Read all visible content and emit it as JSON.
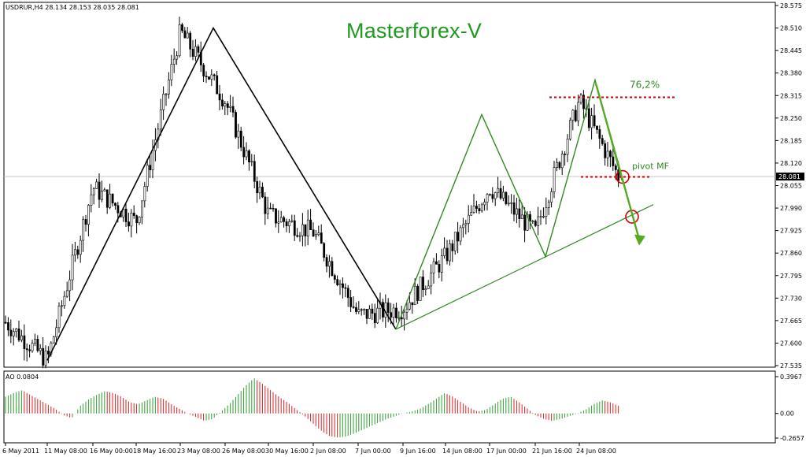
{
  "header": {
    "symbol_line": "USDRUR,H4  28.134 28.153 28.035 28.081",
    "watermark": "Masterforex-V"
  },
  "annotations": {
    "fib_label": "76,2%",
    "pivot_label": "pivot MF"
  },
  "colors": {
    "candle": "#000000",
    "black_line": "#000000",
    "green_line": "#2e8b1e",
    "dotted_red": "#cc0000",
    "arrow_green": "#55aa22",
    "ao_up": "#2e9e2e",
    "ao_down": "#dd2222",
    "watermark": "#1f9a1f"
  },
  "price_axis": {
    "ticks": [
      "28.575",
      "28.510",
      "28.445",
      "28.380",
      "28.315",
      "28.250",
      "28.185",
      "28.120",
      "28.055",
      "27.990",
      "27.925",
      "27.860",
      "27.795",
      "27.730",
      "27.665",
      "27.600",
      "27.535"
    ],
    "current_price": "28.081",
    "min": 27.535,
    "max": 28.575
  },
  "time_axis": {
    "labels": [
      "6 May 2011",
      "11 May 08:00",
      "16 May 00:00",
      "18 May 16:00",
      "23 May 08:00",
      "26 May 08:00",
      "30 May 16:00",
      "2 Jun 08:00",
      "7 Jun 00:00",
      "9 Jun 16:00",
      "14 Jun 08:00",
      "17 Jun 00:00",
      "21 Jun 16:00",
      "24 Jun 08:00"
    ]
  },
  "indicator": {
    "label": "AO 0.0804",
    "ticks": [
      "0.3967",
      "0.00",
      "-0.2657"
    ],
    "max": 0.3967,
    "min": -0.2657
  },
  "chart_data": {
    "type": "candlestick",
    "symbol": "USDRUR",
    "timeframe": "H4",
    "ohlc": {
      "open": 28.134,
      "high": 28.153,
      "low": 28.035,
      "close": 28.081
    },
    "ylim": [
      27.535,
      28.575
    ],
    "price_path": [
      {
        "t": "6 May 2011",
        "price": 27.66
      },
      {
        "t": "11 May 08:00",
        "price": 27.55
      },
      {
        "t": "16 May 00:00",
        "price": 28.05
      },
      {
        "t": "18 May 16:00",
        "price": 27.95
      },
      {
        "t": "23 May 08:00",
        "price": 28.5
      },
      {
        "t": "26 May 08:00",
        "price": 28.3
      },
      {
        "t": "30 May 16:00",
        "price": 27.97
      },
      {
        "t": "2 Jun 08:00",
        "price": 27.92
      },
      {
        "t": "7 Jun 00:00",
        "price": 27.68
      },
      {
        "t": "9 Jun 16:00",
        "price": 27.7
      },
      {
        "t": "14 Jun 08:00",
        "price": 27.85
      },
      {
        "t": "17 Jun 00:00",
        "price": 28.05
      },
      {
        "t": "21 Jun 16:00",
        "price": 27.92
      },
      {
        "t": "24 Jun 08:00",
        "price": 28.3
      }
    ],
    "black_zigzag": [
      {
        "t": "11 May 08:00",
        "price": 27.55
      },
      {
        "t": "23 May 08:00",
        "price": 28.51
      },
      {
        "t": "7 Jun 00:00",
        "price": 27.64
      }
    ],
    "green_zigzag": [
      {
        "t": "7 Jun 00:00",
        "price": 27.64
      },
      {
        "t": "14 Jun 08:00",
        "price": 28.26
      },
      {
        "t": "21 Jun 16:00",
        "price": 27.85
      },
      {
        "t": "24 Jun 08:00",
        "price": 28.36
      },
      {
        "t": "24 Jun 08:00",
        "price": 28.07
      }
    ],
    "trendline": [
      {
        "t": "7 Jun 00:00",
        "price": 27.64
      },
      {
        "t": "24 Jun 08:00",
        "price": 27.99
      }
    ],
    "levels": [
      {
        "name": "76,2%",
        "price": 28.31
      },
      {
        "name": "pivot MF",
        "price": 28.08
      }
    ],
    "ao_values": [
      0.18,
      0.22,
      0.25,
      0.2,
      0.15,
      0.1,
      0.05,
      -0.02,
      -0.05,
      0.08,
      0.15,
      0.2,
      0.24,
      0.22,
      0.18,
      0.12,
      0.1,
      0.14,
      0.18,
      0.16,
      0.1,
      0.05,
      0.0,
      -0.04,
      -0.08,
      -0.06,
      0.02,
      0.1,
      0.2,
      0.3,
      0.38,
      0.32,
      0.25,
      0.18,
      0.12,
      0.05,
      -0.02,
      -0.1,
      -0.18,
      -0.24,
      -0.26,
      -0.25,
      -0.22,
      -0.18,
      -0.14,
      -0.1,
      -0.06,
      -0.03,
      0.0,
      0.02,
      0.05,
      0.1,
      0.16,
      0.22,
      0.18,
      0.12,
      0.06,
      0.02,
      0.04,
      0.1,
      0.16,
      0.18,
      0.12,
      0.05,
      -0.02,
      -0.06,
      -0.08,
      -0.06,
      -0.03,
      0.0,
      0.04,
      0.1,
      0.14,
      0.12,
      0.08
    ]
  }
}
